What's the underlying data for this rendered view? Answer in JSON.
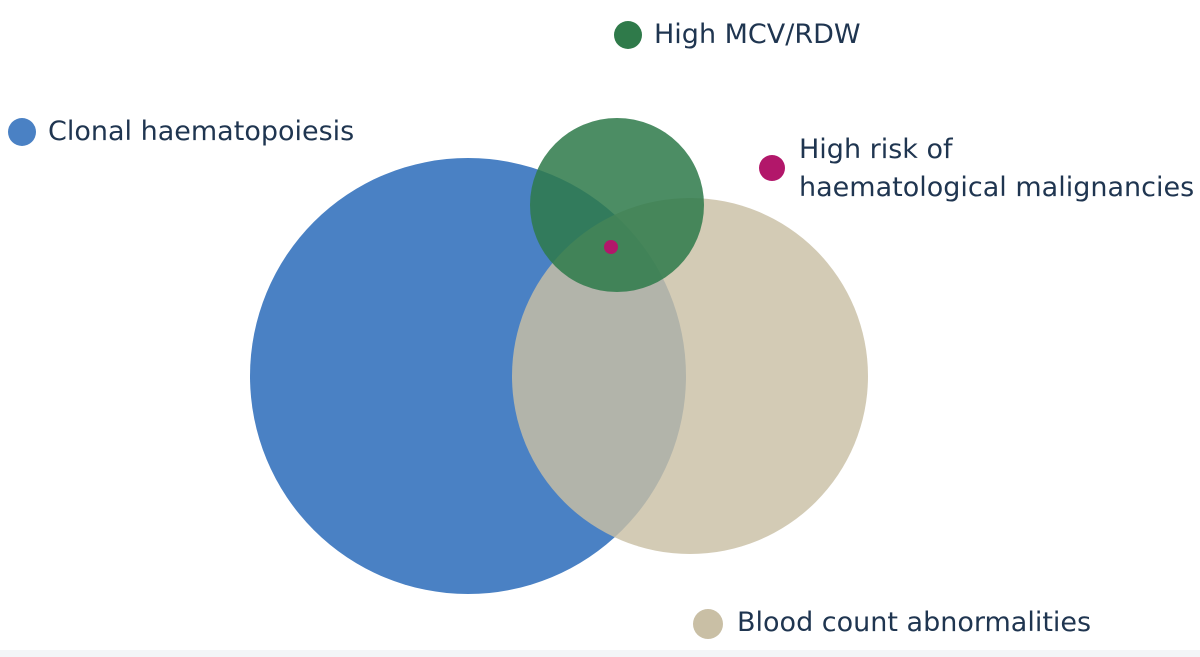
{
  "sets": [
    {
      "id": "clonal",
      "label": "Clonal haematopoiesis",
      "color": "#4a81c4"
    },
    {
      "id": "mcv",
      "label": "High MCV/RDW",
      "color": "#2f7a4a"
    },
    {
      "id": "blood",
      "label": "Blood count abnormalities",
      "color": "#c9bfa5"
    }
  ],
  "highlight": {
    "id": "risk",
    "label_line1": "High risk of",
    "label_line2": "haematological malignancies",
    "color": "#b2176a"
  }
}
